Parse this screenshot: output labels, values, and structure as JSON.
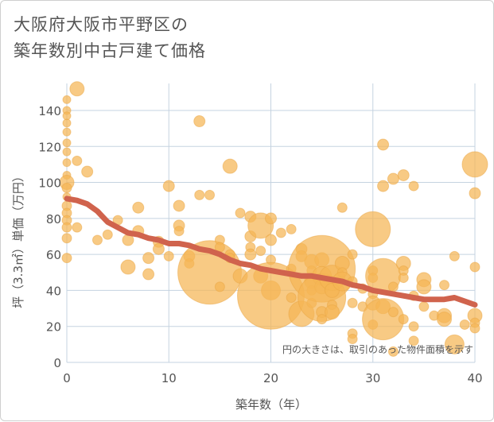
{
  "chart_data": {
    "type": "scatter",
    "title_lines": [
      "大阪府大阪市平野区の",
      "築年数別中古戸建て価格"
    ],
    "xlabel": "築年数（年）",
    "ylabel": "坪（3.3㎡）単価（万円）",
    "note": "円の大きさは、取引のあった物件面積を示す",
    "xlim": [
      0,
      40
    ],
    "ylim": [
      0,
      155
    ],
    "xticks": [
      0,
      10,
      20,
      30,
      40
    ],
    "yticks": [
      0,
      20,
      40,
      60,
      80,
      100,
      120,
      140
    ],
    "grid": true,
    "colors": {
      "bubble": "#f5b555",
      "trend": "#d0634d",
      "grid": "#c5d3e0"
    },
    "bubbles": [
      {
        "x": 0,
        "y": 146,
        "s": 5
      },
      {
        "x": 0,
        "y": 140,
        "s": 5
      },
      {
        "x": 0,
        "y": 137,
        "s": 5
      },
      {
        "x": 0,
        "y": 133,
        "s": 5
      },
      {
        "x": 0,
        "y": 128,
        "s": 5
      },
      {
        "x": 0,
        "y": 122,
        "s": 5
      },
      {
        "x": 0,
        "y": 117,
        "s": 5
      },
      {
        "x": 0,
        "y": 111,
        "s": 5
      },
      {
        "x": 0,
        "y": 104,
        "s": 5
      },
      {
        "x": 0,
        "y": 100,
        "s": 9
      },
      {
        "x": 0,
        "y": 97,
        "s": 6
      },
      {
        "x": 0,
        "y": 92,
        "s": 5
      },
      {
        "x": 0,
        "y": 87,
        "s": 6
      },
      {
        "x": 0,
        "y": 83,
        "s": 6
      },
      {
        "x": 0,
        "y": 79,
        "s": 6
      },
      {
        "x": 0,
        "y": 75,
        "s": 6
      },
      {
        "x": 0,
        "y": 69,
        "s": 6
      },
      {
        "x": 0,
        "y": 58,
        "s": 6
      },
      {
        "x": 1,
        "y": 152,
        "s": 9
      },
      {
        "x": 1,
        "y": 112,
        "s": 6
      },
      {
        "x": 1,
        "y": 75,
        "s": 6
      },
      {
        "x": 2,
        "y": 106,
        "s": 7
      },
      {
        "x": 3,
        "y": 68,
        "s": 6
      },
      {
        "x": 4,
        "y": 71,
        "s": 6
      },
      {
        "x": 5,
        "y": 79,
        "s": 6
      },
      {
        "x": 6,
        "y": 68,
        "s": 7
      },
      {
        "x": 6,
        "y": 53,
        "s": 9
      },
      {
        "x": 7,
        "y": 86,
        "s": 7
      },
      {
        "x": 7,
        "y": 73,
        "s": 7
      },
      {
        "x": 8,
        "y": 58,
        "s": 7
      },
      {
        "x": 8,
        "y": 49,
        "s": 7
      },
      {
        "x": 9,
        "y": 67,
        "s": 7
      },
      {
        "x": 9,
        "y": 63,
        "s": 7
      },
      {
        "x": 10,
        "y": 98,
        "s": 7
      },
      {
        "x": 10,
        "y": 59,
        "s": 6
      },
      {
        "x": 11,
        "y": 87,
        "s": 7
      },
      {
        "x": 11,
        "y": 76,
        "s": 7
      },
      {
        "x": 11,
        "y": 73,
        "s": 6
      },
      {
        "x": 12,
        "y": 59,
        "s": 7
      },
      {
        "x": 12,
        "y": 55,
        "s": 6
      },
      {
        "x": 13,
        "y": 134,
        "s": 7
      },
      {
        "x": 13,
        "y": 93,
        "s": 6
      },
      {
        "x": 14,
        "y": 93,
        "s": 6
      },
      {
        "x": 14,
        "y": 50,
        "s": 40
      },
      {
        "x": 15,
        "y": 68,
        "s": 6
      },
      {
        "x": 15,
        "y": 64,
        "s": 6
      },
      {
        "x": 15,
        "y": 42,
        "s": 6
      },
      {
        "x": 16,
        "y": 109,
        "s": 9
      },
      {
        "x": 16,
        "y": 60,
        "s": 6
      },
      {
        "x": 16,
        "y": 58,
        "s": 6
      },
      {
        "x": 17,
        "y": 83,
        "s": 6
      },
      {
        "x": 17,
        "y": 48,
        "s": 9
      },
      {
        "x": 18,
        "y": 81,
        "s": 7
      },
      {
        "x": 18,
        "y": 70,
        "s": 7
      },
      {
        "x": 18,
        "y": 64,
        "s": 6
      },
      {
        "x": 18,
        "y": 60,
        "s": 7
      },
      {
        "x": 19,
        "y": 76,
        "s": 16
      },
      {
        "x": 19,
        "y": 62,
        "s": 6
      },
      {
        "x": 19,
        "y": 48,
        "s": 9
      },
      {
        "x": 20,
        "y": 80,
        "s": 7
      },
      {
        "x": 20,
        "y": 68,
        "s": 7
      },
      {
        "x": 20,
        "y": 57,
        "s": 6
      },
      {
        "x": 20,
        "y": 40,
        "s": 12
      },
      {
        "x": 20,
        "y": 37,
        "s": 42
      },
      {
        "x": 21,
        "y": 72,
        "s": 6
      },
      {
        "x": 22,
        "y": 74,
        "s": 6
      },
      {
        "x": 22,
        "y": 52,
        "s": 6
      },
      {
        "x": 22,
        "y": 36,
        "s": 6
      },
      {
        "x": 23,
        "y": 63,
        "s": 7
      },
      {
        "x": 23,
        "y": 59,
        "s": 7
      },
      {
        "x": 23,
        "y": 27,
        "s": 16
      },
      {
        "x": 24,
        "y": 56,
        "s": 9
      },
      {
        "x": 24,
        "y": 51,
        "s": 6
      },
      {
        "x": 24,
        "y": 45,
        "s": 9
      },
      {
        "x": 24,
        "y": 40,
        "s": 6
      },
      {
        "x": 24,
        "y": 33,
        "s": 6
      },
      {
        "x": 25,
        "y": 57,
        "s": 9
      },
      {
        "x": 25,
        "y": 52,
        "s": 42
      },
      {
        "x": 25,
        "y": 48,
        "s": 12
      },
      {
        "x": 25,
        "y": 42,
        "s": 9
      },
      {
        "x": 25,
        "y": 36,
        "s": 30
      },
      {
        "x": 25,
        "y": 28,
        "s": 7
      },
      {
        "x": 25,
        "y": 24,
        "s": 6
      },
      {
        "x": 26,
        "y": 47,
        "s": 16
      },
      {
        "x": 26,
        "y": 40,
        "s": 9
      },
      {
        "x": 26,
        "y": 32,
        "s": 6
      },
      {
        "x": 26,
        "y": 28,
        "s": 9
      },
      {
        "x": 27,
        "y": 86,
        "s": 6
      },
      {
        "x": 27,
        "y": 55,
        "s": 9
      },
      {
        "x": 27,
        "y": 50,
        "s": 6
      },
      {
        "x": 27,
        "y": 45,
        "s": 12
      },
      {
        "x": 28,
        "y": 60,
        "s": 6
      },
      {
        "x": 28,
        "y": 45,
        "s": 6
      },
      {
        "x": 28,
        "y": 33,
        "s": 6
      },
      {
        "x": 28,
        "y": 16,
        "s": 6
      },
      {
        "x": 28,
        "y": 13,
        "s": 6
      },
      {
        "x": 29,
        "y": 41,
        "s": 6
      },
      {
        "x": 29,
        "y": 31,
        "s": 6
      },
      {
        "x": 30,
        "y": 74,
        "s": 22
      },
      {
        "x": 30,
        "y": 51,
        "s": 6
      },
      {
        "x": 30,
        "y": 47,
        "s": 6
      },
      {
        "x": 30,
        "y": 38,
        "s": 6
      },
      {
        "x": 30,
        "y": 33,
        "s": 9
      },
      {
        "x": 30,
        "y": 21,
        "s": 6
      },
      {
        "x": 31,
        "y": 121,
        "s": 7
      },
      {
        "x": 31,
        "y": 98,
        "s": 7
      },
      {
        "x": 31,
        "y": 48,
        "s": 22
      },
      {
        "x": 31,
        "y": 31,
        "s": 9
      },
      {
        "x": 31,
        "y": 24,
        "s": 26
      },
      {
        "x": 32,
        "y": 102,
        "s": 7
      },
      {
        "x": 32,
        "y": 42,
        "s": 6
      },
      {
        "x": 32,
        "y": 28,
        "s": 6
      },
      {
        "x": 32,
        "y": 6,
        "s": 6
      },
      {
        "x": 33,
        "y": 104,
        "s": 7
      },
      {
        "x": 33,
        "y": 55,
        "s": 9
      },
      {
        "x": 33,
        "y": 51,
        "s": 6
      },
      {
        "x": 33,
        "y": 47,
        "s": 6
      },
      {
        "x": 33,
        "y": 24,
        "s": 6
      },
      {
        "x": 34,
        "y": 98,
        "s": 6
      },
      {
        "x": 34,
        "y": 37,
        "s": 6
      },
      {
        "x": 34,
        "y": 20,
        "s": 6
      },
      {
        "x": 34,
        "y": 12,
        "s": 6
      },
      {
        "x": 35,
        "y": 46,
        "s": 9
      },
      {
        "x": 35,
        "y": 42,
        "s": 9
      },
      {
        "x": 35,
        "y": 31,
        "s": 6
      },
      {
        "x": 36,
        "y": 26,
        "s": 6
      },
      {
        "x": 37,
        "y": 43,
        "s": 6
      },
      {
        "x": 37,
        "y": 26,
        "s": 9
      },
      {
        "x": 37,
        "y": 24,
        "s": 9
      },
      {
        "x": 38,
        "y": 59,
        "s": 6
      },
      {
        "x": 38,
        "y": 10,
        "s": 12
      },
      {
        "x": 39,
        "y": 21,
        "s": 6
      },
      {
        "x": 40,
        "y": 110,
        "s": 16
      },
      {
        "x": 40,
        "y": 94,
        "s": 7
      },
      {
        "x": 40,
        "y": 53,
        "s": 6
      },
      {
        "x": 40,
        "y": 26,
        "s": 9
      },
      {
        "x": 40,
        "y": 22,
        "s": 6
      },
      {
        "x": 40,
        "y": 19,
        "s": 6
      }
    ],
    "trend": [
      {
        "x": 0,
        "y": 91
      },
      {
        "x": 1,
        "y": 90
      },
      {
        "x": 2,
        "y": 88
      },
      {
        "x": 3,
        "y": 84
      },
      {
        "x": 4,
        "y": 78
      },
      {
        "x": 5,
        "y": 75
      },
      {
        "x": 6,
        "y": 72
      },
      {
        "x": 7,
        "y": 71
      },
      {
        "x": 8,
        "y": 69
      },
      {
        "x": 9,
        "y": 68
      },
      {
        "x": 10,
        "y": 66
      },
      {
        "x": 11,
        "y": 66
      },
      {
        "x": 12,
        "y": 65
      },
      {
        "x": 13,
        "y": 63
      },
      {
        "x": 14,
        "y": 62
      },
      {
        "x": 15,
        "y": 60
      },
      {
        "x": 16,
        "y": 57
      },
      {
        "x": 17,
        "y": 55
      },
      {
        "x": 18,
        "y": 54
      },
      {
        "x": 19,
        "y": 52
      },
      {
        "x": 20,
        "y": 51
      },
      {
        "x": 21,
        "y": 50
      },
      {
        "x": 22,
        "y": 49
      },
      {
        "x": 23,
        "y": 48
      },
      {
        "x": 24,
        "y": 48
      },
      {
        "x": 25,
        "y": 47
      },
      {
        "x": 26,
        "y": 46
      },
      {
        "x": 27,
        "y": 45
      },
      {
        "x": 28,
        "y": 43
      },
      {
        "x": 29,
        "y": 42
      },
      {
        "x": 30,
        "y": 40
      },
      {
        "x": 31,
        "y": 39
      },
      {
        "x": 32,
        "y": 38
      },
      {
        "x": 33,
        "y": 37
      },
      {
        "x": 34,
        "y": 36
      },
      {
        "x": 35,
        "y": 35
      },
      {
        "x": 36,
        "y": 35
      },
      {
        "x": 37,
        "y": 35
      },
      {
        "x": 38,
        "y": 36
      },
      {
        "x": 39,
        "y": 34
      },
      {
        "x": 40,
        "y": 32
      }
    ]
  }
}
